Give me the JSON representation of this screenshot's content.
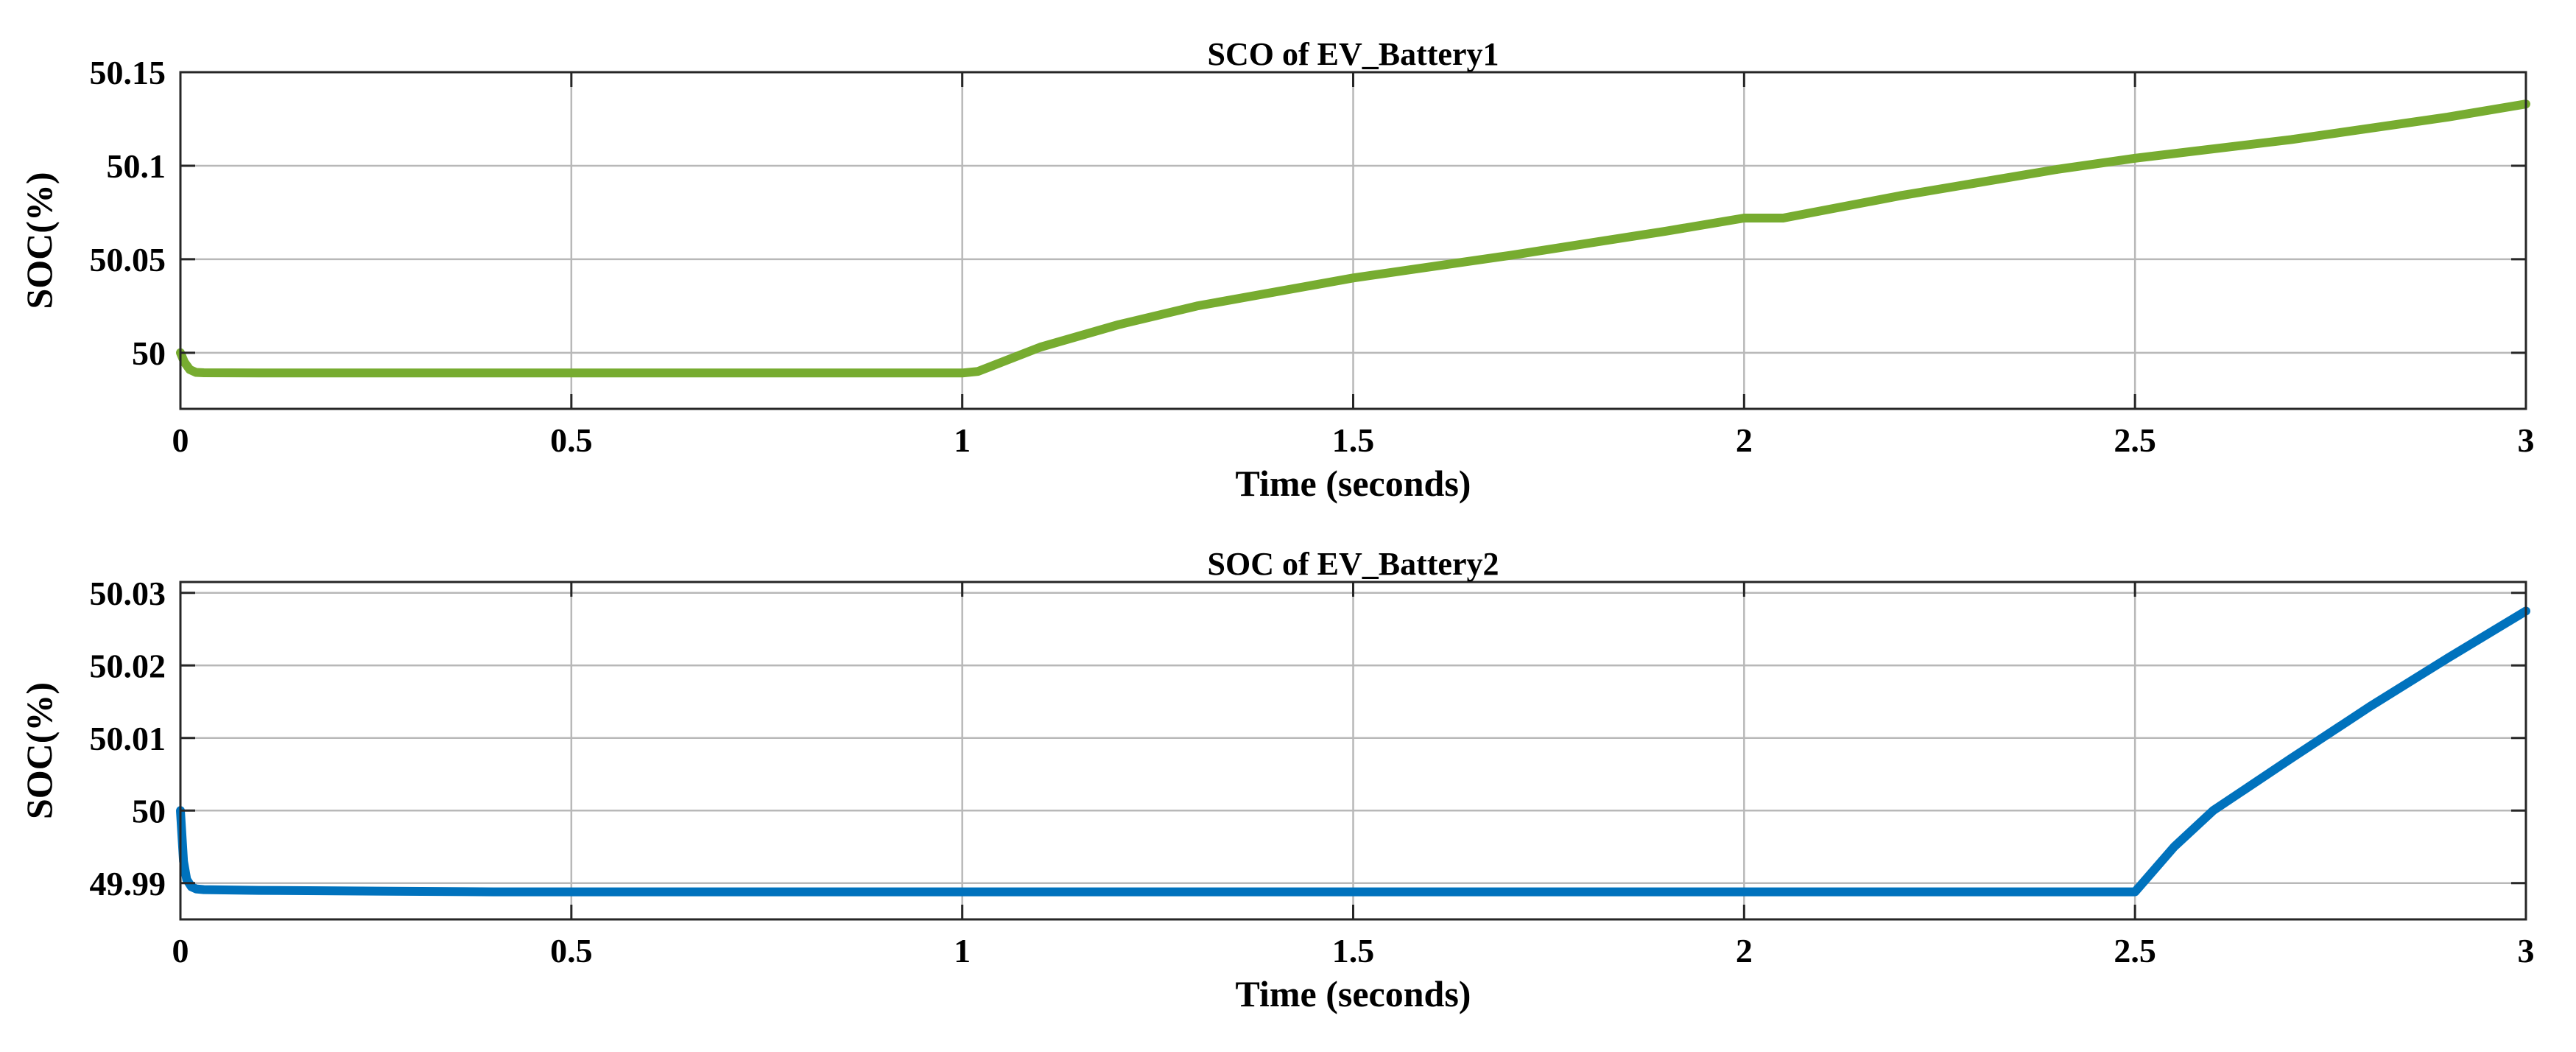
{
  "chart_data": [
    {
      "type": "line",
      "title": "SCO of EV_Battery1",
      "xlabel": "Time (seconds)",
      "ylabel": "SOC(%)",
      "xlim": [
        0,
        3
      ],
      "ylim": [
        49.97,
        50.15
      ],
      "xticks": [
        0,
        0.5,
        1,
        1.5,
        2,
        2.5,
        3
      ],
      "xtick_labels": [
        "0",
        "0.5",
        "1",
        "1.5",
        "2",
        "2.5",
        "3"
      ],
      "yticks": [
        50,
        50.05,
        50.1,
        50.15
      ],
      "ytick_labels": [
        "50",
        "50.05",
        "50.1",
        "50.15"
      ],
      "grid": true,
      "series": [
        {
          "color": "#77AC30",
          "x": [
            0,
            0.005,
            0.012,
            0.02,
            0.03,
            0.1,
            0.5,
            1.0,
            1.02,
            1.1,
            1.2,
            1.3,
            1.5,
            1.7,
            1.9,
            2.0,
            2.05,
            2.2,
            2.4,
            2.5,
            2.7,
            2.9,
            3.0
          ],
          "y": [
            50.0,
            49.995,
            49.991,
            49.9895,
            49.9893,
            49.9892,
            49.9892,
            49.9892,
            49.99,
            50.003,
            50.015,
            50.025,
            50.04,
            50.052,
            50.065,
            50.072,
            50.072,
            50.084,
            50.098,
            50.104,
            50.114,
            50.126,
            50.133
          ]
        }
      ]
    },
    {
      "type": "line",
      "title": "SOC of EV_Battery2",
      "xlabel": "Time (seconds)",
      "ylabel": "SOC(%)",
      "xlim": [
        0,
        3
      ],
      "ylim": [
        49.985,
        50.0315
      ],
      "xticks": [
        0,
        0.5,
        1,
        1.5,
        2,
        2.5,
        3
      ],
      "xtick_labels": [
        "0",
        "0.5",
        "1",
        "1.5",
        "2",
        "2.5",
        "3"
      ],
      "yticks": [
        49.99,
        50,
        50.01,
        50.02,
        50.03
      ],
      "ytick_labels": [
        "49.99",
        "50",
        "50.01",
        "50.02",
        "50.03"
      ],
      "grid": true,
      "series": [
        {
          "color": "#0072BD",
          "x": [
            0,
            0.004,
            0.008,
            0.014,
            0.02,
            0.03,
            0.1,
            0.4,
            1.0,
            2.0,
            2.5,
            2.55,
            2.6,
            2.7,
            2.8,
            2.9,
            3.0
          ],
          "y": [
            50.0,
            49.993,
            49.9905,
            49.9895,
            49.9892,
            49.9891,
            49.989,
            49.9888,
            49.9888,
            49.9888,
            49.9888,
            49.995,
            50.0,
            50.0072,
            50.0143,
            50.021,
            50.0275
          ]
        }
      ]
    }
  ]
}
